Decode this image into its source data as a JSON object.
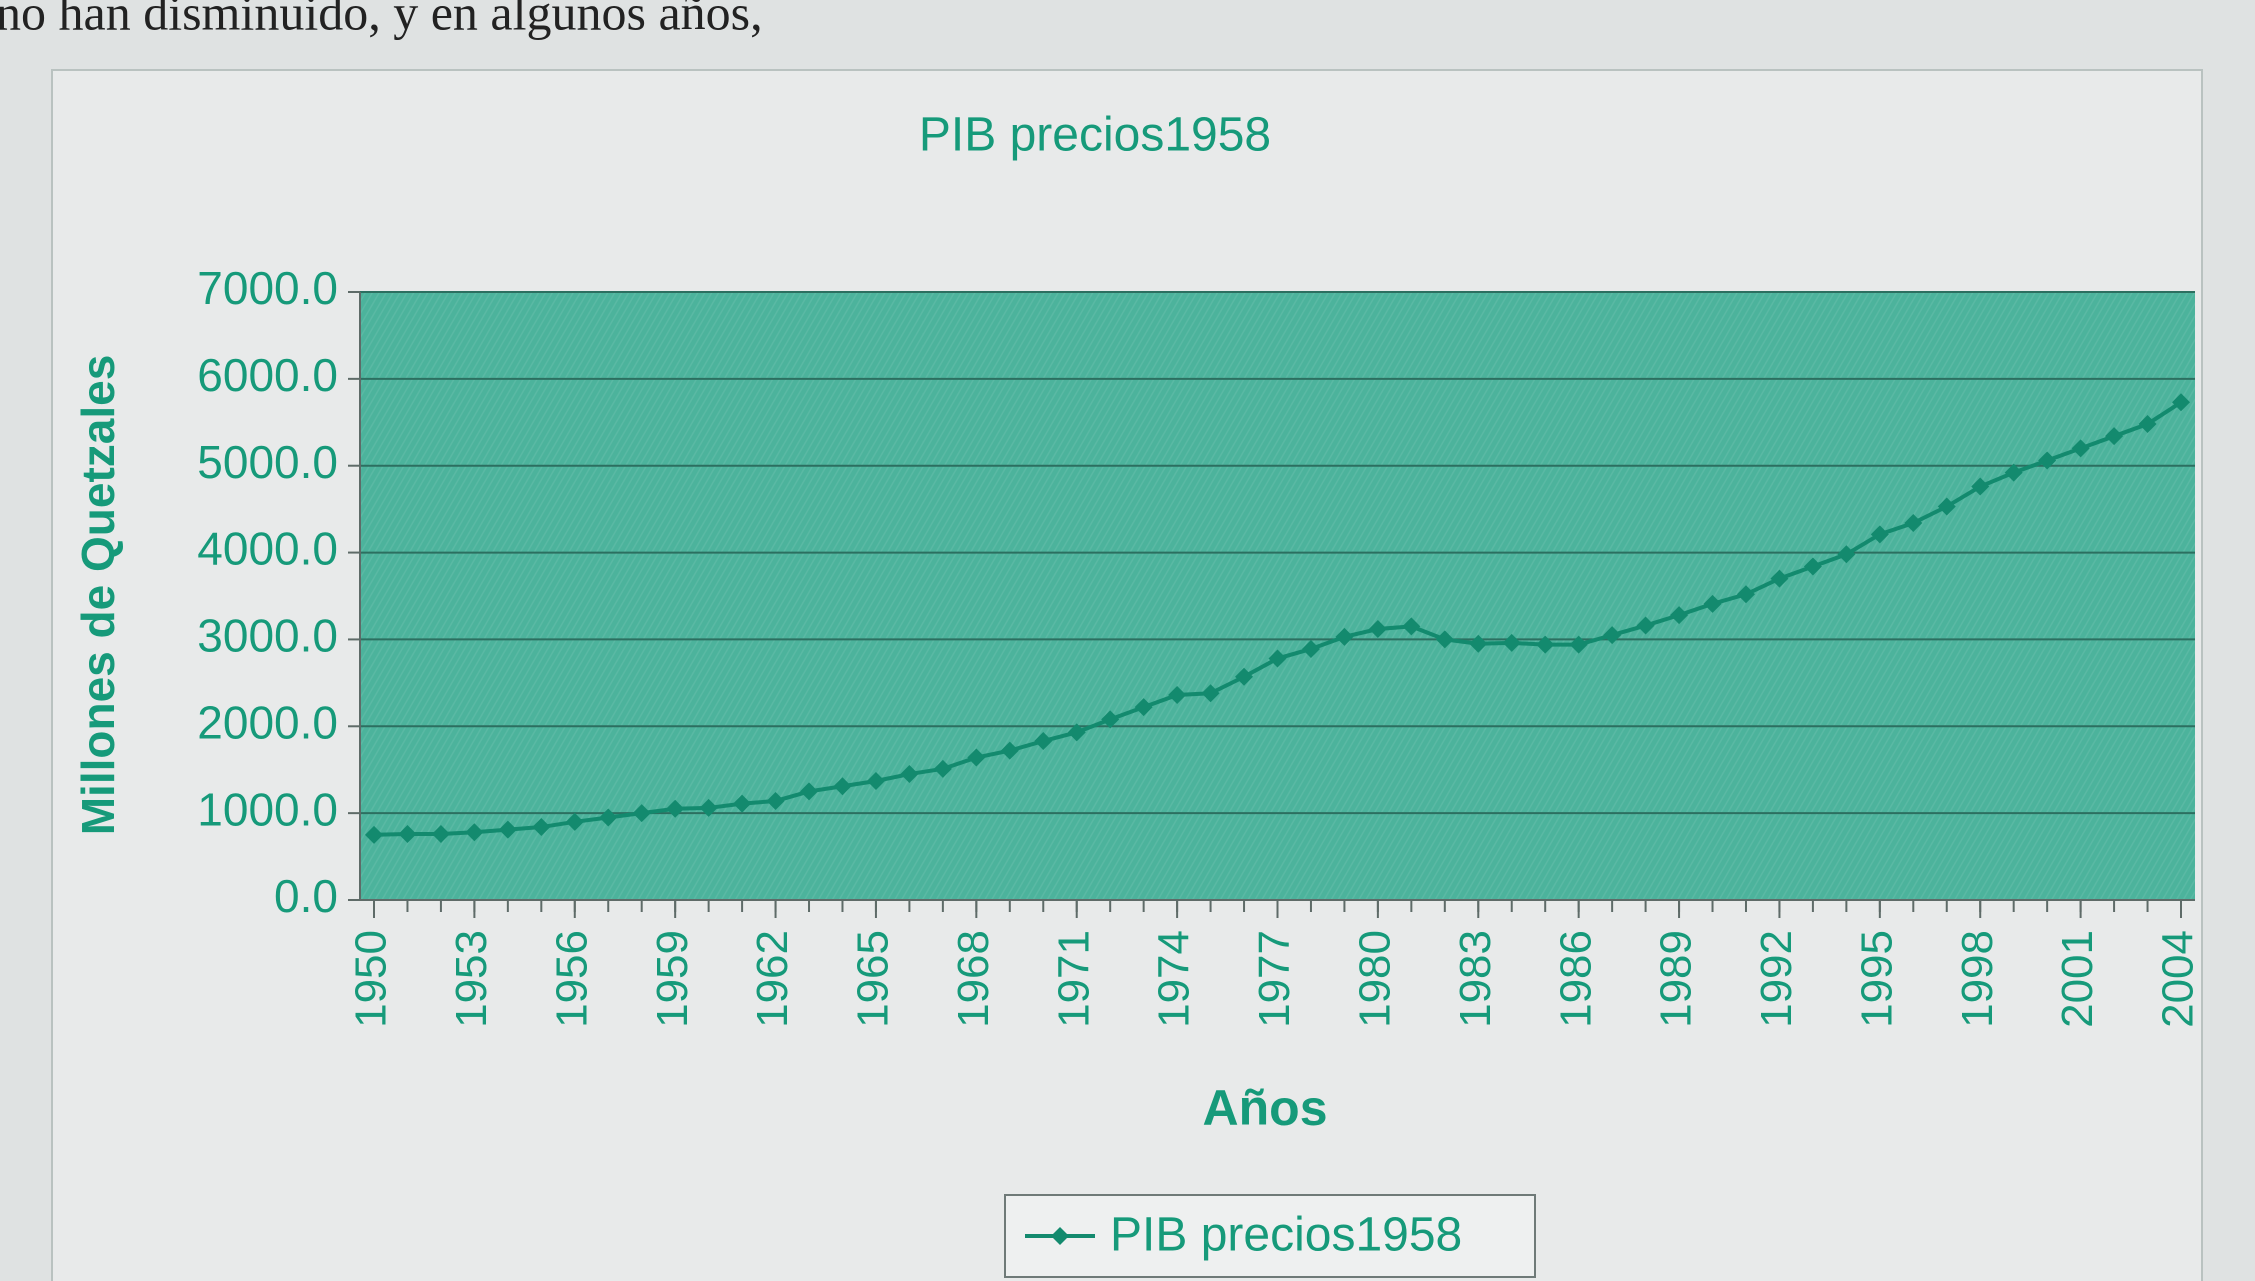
{
  "document_text": "no han disminuido, y en algunos años,",
  "chart_data": {
    "type": "line",
    "title": "PIB precios1958",
    "x_label": "Años",
    "y_label": "Millones de Quetzales",
    "x": [
      1950,
      1951,
      1952,
      1953,
      1954,
      1955,
      1956,
      1957,
      1958,
      1959,
      1960,
      1961,
      1962,
      1963,
      1964,
      1965,
      1966,
      1967,
      1968,
      1969,
      1970,
      1971,
      1972,
      1973,
      1974,
      1975,
      1976,
      1977,
      1978,
      1979,
      1980,
      1981,
      1982,
      1983,
      1984,
      1985,
      1986,
      1987,
      1988,
      1989,
      1990,
      1991,
      1992,
      1993,
      1994,
      1995,
      1996,
      1997,
      1998,
      1999,
      2000,
      2001,
      2002,
      2003,
      2004
    ],
    "series": [
      {
        "name": "PIB precios1958",
        "color": "#138a6e",
        "values": [
          750,
          760,
          760,
          780,
          810,
          840,
          900,
          950,
          1000,
          1050,
          1060,
          1110,
          1140,
          1250,
          1310,
          1370,
          1450,
          1510,
          1640,
          1720,
          1830,
          1930,
          2080,
          2220,
          2360,
          2380,
          2570,
          2780,
          2890,
          3030,
          3120,
          3150,
          3000,
          2950,
          2960,
          2940,
          2940,
          3050,
          3160,
          3280,
          3410,
          3520,
          3700,
          3840,
          3980,
          4210,
          4340,
          4530,
          4760,
          4920,
          5060,
          5200,
          5340,
          5480,
          5730
        ]
      }
    ],
    "xlim": [
      1950,
      2004
    ],
    "xticks": [
      1950,
      1953,
      1956,
      1959,
      1962,
      1965,
      1968,
      1971,
      1974,
      1977,
      1980,
      1983,
      1986,
      1989,
      1992,
      1995,
      1998,
      2001,
      2004
    ],
    "ylim": [
      0,
      7000
    ],
    "yticks": [
      {
        "value": 0,
        "label": "0.0"
      },
      {
        "value": 1000,
        "label": "1000.0"
      },
      {
        "value": 2000,
        "label": "2000.0"
      },
      {
        "value": 3000,
        "label": "3000.0"
      },
      {
        "value": 4000,
        "label": "4000.0"
      },
      {
        "value": 5000,
        "label": "5000.0"
      },
      {
        "value": 6000,
        "label": "6000.0"
      },
      {
        "value": 7000,
        "label": "7000.0"
      }
    ],
    "grid": true,
    "plot_color": "#4cb39c",
    "legend": "bottom"
  }
}
